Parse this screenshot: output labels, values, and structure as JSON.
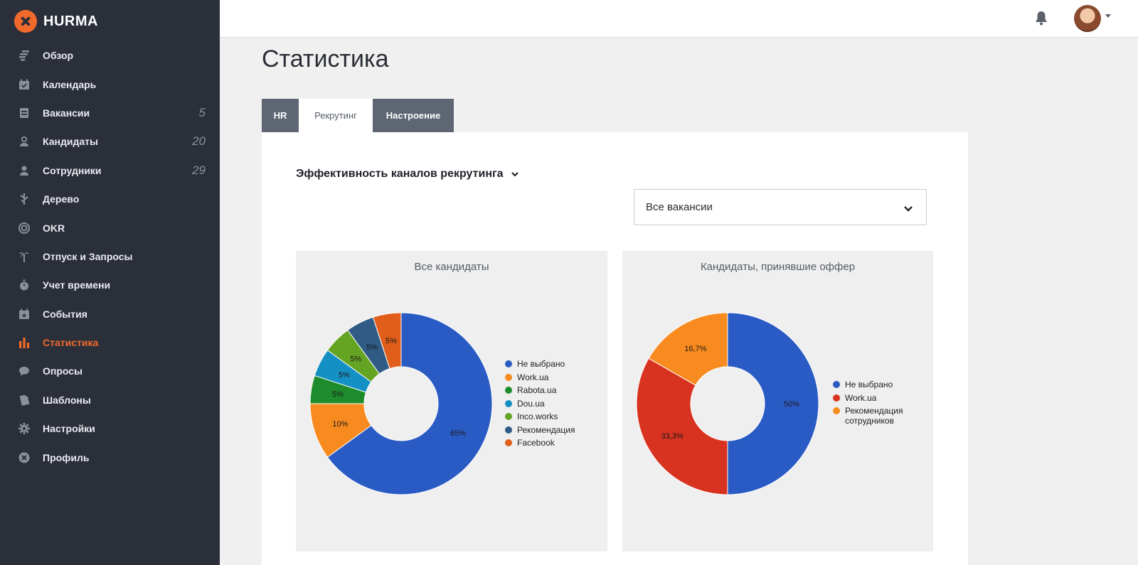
{
  "brand": {
    "name": "HURMA",
    "color": "#f26a2b"
  },
  "sidebar": {
    "items": [
      {
        "label": "Обзор",
        "icon": "overview-icon"
      },
      {
        "label": "Календарь",
        "icon": "calendar-icon"
      },
      {
        "label": "Вакансии",
        "icon": "vacancies-icon",
        "count": "5"
      },
      {
        "label": "Кандидаты",
        "icon": "candidates-icon",
        "count": "20"
      },
      {
        "label": "Сотрудники",
        "icon": "employees-icon",
        "count": "29"
      },
      {
        "label": "Дерево",
        "icon": "tree-icon"
      },
      {
        "label": "OKR",
        "icon": "target-icon"
      },
      {
        "label": "Отпуск и Запросы",
        "icon": "palm-tree-icon"
      },
      {
        "label": "Учет времени",
        "icon": "stopwatch-icon"
      },
      {
        "label": "События",
        "icon": "event-calendar-icon"
      },
      {
        "label": "Статистика",
        "icon": "bar-chart-icon",
        "active": true
      },
      {
        "label": "Опросы",
        "icon": "chat-bubble-icon"
      },
      {
        "label": "Шаблоны",
        "icon": "template-icon"
      },
      {
        "label": "Настройки",
        "icon": "gear-icon"
      },
      {
        "label": "Профиль",
        "icon": "profile-icon"
      }
    ]
  },
  "topbar": {
    "bell_icon": "bell-icon",
    "avatar": "user-avatar"
  },
  "page": {
    "title": "Статистика"
  },
  "tabs": [
    {
      "label": "HR",
      "active": false
    },
    {
      "label": "Рекрутинг",
      "active": true
    },
    {
      "label": "Настроение",
      "active": false
    }
  ],
  "panel": {
    "section_title": "Эффективность каналов рекрутинга",
    "filter": {
      "value": "Все вакансии"
    }
  },
  "chart_data": [
    {
      "type": "pie",
      "title": "Все кандидаты",
      "donut": true,
      "slices": [
        {
          "name": "Не выбрано",
          "value": 65,
          "label": "65%",
          "color": "#2a5bc4"
        },
        {
          "name": "Work.ua",
          "value": 10,
          "label": "10%",
          "color": "#f78b1f"
        },
        {
          "name": "Rabota.ua",
          "value": 5,
          "label": "5%",
          "color": "#1e8c2c"
        },
        {
          "name": "Dou.ua",
          "value": 5,
          "label": "5%",
          "color": "#1590c4"
        },
        {
          "name": "Inco.works",
          "value": 5,
          "label": "5%",
          "color": "#65a323"
        },
        {
          "name": "Рекомендация",
          "value": 5,
          "label": "5%",
          "color": "#2f5b85"
        },
        {
          "name": "Facebook",
          "value": 5,
          "label": "5%",
          "color": "#e05e1a"
        }
      ],
      "legend_position": "right"
    },
    {
      "type": "pie",
      "title": "Кандидаты, принявшие оффер",
      "donut": true,
      "slices": [
        {
          "name": "Не выбрано",
          "value": 50,
          "label": "50%",
          "color": "#2a5bc4"
        },
        {
          "name": "Work.ua",
          "value": 33.3,
          "label": "33,3%",
          "color": "#d83320"
        },
        {
          "name": "Рекомендация сотрудников",
          "value": 16.7,
          "label": "16,7%",
          "color": "#f78b1f"
        }
      ],
      "legend_position": "right"
    }
  ]
}
